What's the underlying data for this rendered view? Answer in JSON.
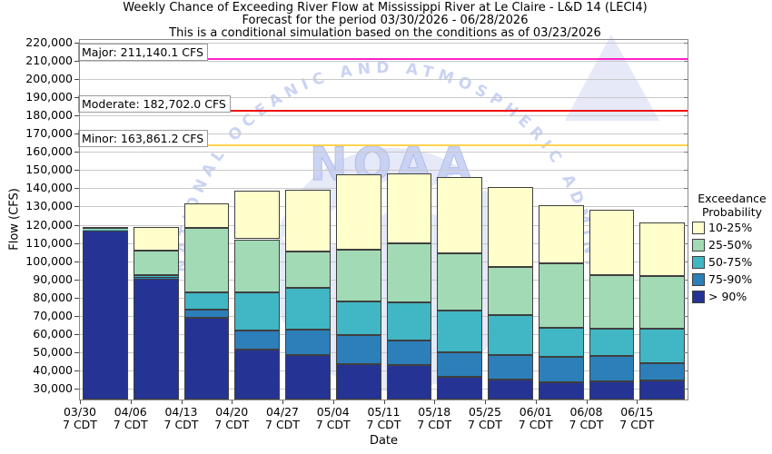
{
  "title": {
    "line1": "Weekly Chance of Exceeding River Flow at Mississippi River at Le Claire - L&D 14 (LECI4)",
    "line2": "Forecast for the period 03/30/2026 - 06/28/2026",
    "line3": "This is a conditional simulation based on the conditions as of 03/23/2026"
  },
  "axes": {
    "y_label": "Flow (CFS)",
    "x_label": "Date",
    "y_tick_values": [
      30000,
      40000,
      50000,
      60000,
      70000,
      80000,
      90000,
      100000,
      110000,
      120000,
      130000,
      140000,
      150000,
      160000,
      170000,
      180000,
      190000,
      200000,
      210000,
      220000
    ],
    "x_tick_sublabel": "7 CDT"
  },
  "legend": {
    "title_line1": "Exceedance",
    "title_line2": "Probability",
    "items": [
      {
        "label": "10-25%",
        "color": "#ffffcc"
      },
      {
        "label": "25-50%",
        "color": "#a1dab4"
      },
      {
        "label": "50-75%",
        "color": "#41b6c4"
      },
      {
        "label": "75-90%",
        "color": "#2c7fb8"
      },
      {
        "label": "> 90%",
        "color": "#253494"
      }
    ]
  },
  "watermark": {
    "arc_text": "NATIONAL OCEANIC AND ATMOSPHERIC ADMINISTRATION",
    "center_text": "NOAA"
  },
  "chart_data": {
    "type": "bar",
    "stacked": true,
    "unit": "CFS",
    "title": "Weekly Chance of Exceeding River Flow at Mississippi River at Le Claire - L&D 14 (LECI4)",
    "xlabel": "Date",
    "ylabel": "Flow (CFS)",
    "ylim": [
      24000,
      221500
    ],
    "grid": true,
    "legend_position": "right",
    "categories": [
      "03/30",
      "04/06",
      "04/13",
      "04/20",
      "04/27",
      "05/04",
      "05/11",
      "05/18",
      "05/25",
      "06/01",
      "06/08",
      "06/15"
    ],
    "category_sublabel": "7 CDT",
    "series": [
      {
        "name": "> 90%",
        "color": "#253494",
        "cumulative_top": [
          117000,
          90500,
          69000,
          51500,
          48500,
          43500,
          43000,
          36500,
          35000,
          33500,
          34000,
          34500
        ]
      },
      {
        "name": "75-90%",
        "color": "#2c7fb8",
        "cumulative_top": [
          117250,
          91000,
          73500,
          62000,
          62500,
          59500,
          56500,
          50000,
          48500,
          47500,
          48000,
          44000
        ]
      },
      {
        "name": "50-75%",
        "color": "#41b6c4",
        "cumulative_top": [
          117500,
          92500,
          83000,
          83000,
          85500,
          78000,
          77500,
          73000,
          70500,
          63500,
          63000,
          63000
        ]
      },
      {
        "name": "25-50%",
        "color": "#a1dab4",
        "cumulative_top": [
          117800,
          106000,
          118500,
          112000,
          105500,
          106500,
          110000,
          104500,
          97000,
          99000,
          92500,
          92000
        ]
      },
      {
        "name": "10-25%",
        "color": "#ffffcc",
        "cumulative_top": [
          119000,
          119000,
          132000,
          138500,
          139000,
          147500,
          148000,
          146000,
          140500,
          131000,
          128500,
          121500
        ]
      }
    ],
    "thresholds": [
      {
        "name": "Major",
        "label": "Major: 211,140.1 CFS",
        "value": 211140.1,
        "color": "#ff22cc"
      },
      {
        "name": "Moderate",
        "label": "Moderate: 182,702.0 CFS",
        "value": 182702.0,
        "color": "#ee1111"
      },
      {
        "name": "Minor",
        "label": "Minor: 163,861.2 CFS",
        "value": 163861.2,
        "color": "#ffd24d"
      }
    ]
  }
}
